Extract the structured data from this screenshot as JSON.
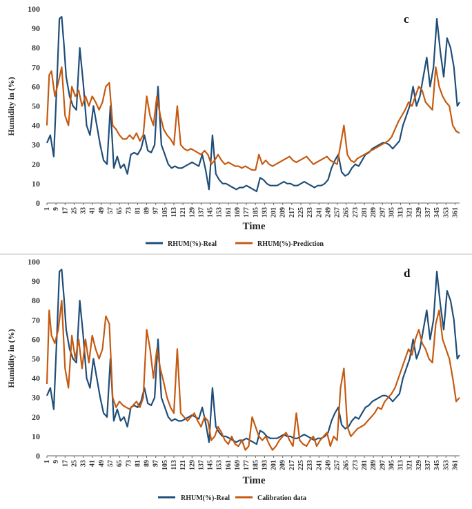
{
  "colors": {
    "real": "#1f4e79",
    "predicted": "#c55a11",
    "axis": "#666666",
    "divider": "#bfbfbf"
  },
  "chart_data": [
    {
      "type": "line",
      "panel_label": "c",
      "xlabel": "Time",
      "ylabel": "Humidity in (%)",
      "ylim": [
        0,
        100
      ],
      "yticks": [
        0,
        10,
        20,
        30,
        40,
        50,
        60,
        70,
        80,
        90,
        100
      ],
      "xlim": [
        1,
        365
      ],
      "xticks": [
        1,
        9,
        17,
        25,
        33,
        41,
        49,
        57,
        65,
        73,
        81,
        89,
        97,
        105,
        113,
        121,
        129,
        137,
        145,
        153,
        161,
        169,
        177,
        185,
        193,
        201,
        209,
        217,
        225,
        233,
        241,
        249,
        257,
        265,
        273,
        281,
        289,
        297,
        305,
        313,
        321,
        329,
        337,
        345,
        353,
        361
      ],
      "legend_position": "bottom",
      "series": [
        {
          "name": "RHUM(%)-Real",
          "color": "#1f4e79",
          "x": [
            1,
            4,
            7,
            10,
            12,
            14,
            16,
            18,
            21,
            24,
            27,
            30,
            33,
            36,
            39,
            42,
            45,
            48,
            51,
            54,
            57,
            60,
            63,
            66,
            69,
            72,
            75,
            78,
            81,
            84,
            87,
            90,
            93,
            96,
            99,
            102,
            105,
            108,
            111,
            114,
            117,
            120,
            123,
            126,
            129,
            132,
            135,
            138,
            141,
            144,
            147,
            150,
            153,
            156,
            159,
            162,
            165,
            168,
            171,
            174,
            177,
            180,
            183,
            186,
            189,
            192,
            195,
            198,
            201,
            204,
            207,
            210,
            213,
            216,
            219,
            222,
            225,
            228,
            231,
            234,
            237,
            240,
            243,
            246,
            249,
            252,
            255,
            258,
            261,
            264,
            267,
            270,
            273,
            276,
            279,
            282,
            285,
            288,
            291,
            294,
            297,
            300,
            303,
            306,
            309,
            312,
            315,
            318,
            321,
            324,
            327,
            330,
            333,
            336,
            339,
            342,
            345,
            348,
            351,
            354,
            357,
            360,
            363,
            365
          ],
          "values": [
            31,
            35,
            24,
            65,
            95,
            96,
            82,
            65,
            55,
            50,
            48,
            80,
            62,
            40,
            35,
            50,
            40,
            30,
            22,
            20,
            50,
            18,
            24,
            18,
            20,
            15,
            25,
            26,
            25,
            28,
            35,
            27,
            26,
            30,
            60,
            30,
            25,
            20,
            18,
            19,
            18,
            18,
            19,
            20,
            21,
            20,
            19,
            25,
            17,
            7,
            35,
            15,
            12,
            10,
            10,
            9,
            8,
            7,
            8,
            8,
            9,
            8,
            7,
            6,
            13,
            12,
            10,
            9,
            9,
            9,
            10,
            11,
            10,
            10,
            9,
            9,
            10,
            11,
            10,
            9,
            8,
            9,
            9,
            10,
            12,
            18,
            22,
            25,
            16,
            14,
            15,
            18,
            20,
            19,
            22,
            25,
            26,
            28,
            29,
            30,
            31,
            31,
            30,
            28,
            30,
            32,
            40,
            45,
            50,
            60,
            50,
            55,
            65,
            75,
            60,
            70,
            95,
            78,
            65,
            85,
            80,
            70,
            50,
            52
          ]
        },
        {
          "name": "RHUM(%)-Prediction",
          "color": "#c55a11",
          "x": [
            1,
            3,
            5,
            8,
            11,
            14,
            17,
            20,
            23,
            26,
            29,
            32,
            35,
            38,
            41,
            44,
            47,
            50,
            53,
            56,
            59,
            62,
            65,
            68,
            71,
            74,
            77,
            80,
            83,
            86,
            89,
            92,
            95,
            98,
            101,
            104,
            107,
            110,
            113,
            116,
            119,
            122,
            125,
            128,
            131,
            134,
            137,
            140,
            143,
            146,
            149,
            152,
            155,
            158,
            161,
            164,
            167,
            170,
            173,
            176,
            179,
            182,
            185,
            188,
            191,
            194,
            197,
            200,
            203,
            206,
            209,
            212,
            215,
            218,
            221,
            224,
            227,
            230,
            233,
            236,
            239,
            242,
            245,
            248,
            251,
            254,
            257,
            260,
            263,
            266,
            269,
            272,
            275,
            278,
            281,
            284,
            287,
            290,
            293,
            296,
            299,
            302,
            305,
            308,
            311,
            314,
            317,
            320,
            323,
            326,
            329,
            332,
            335,
            338,
            341,
            344,
            347,
            350,
            353,
            356,
            359,
            362,
            365
          ],
          "values": [
            40,
            66,
            68,
            55,
            62,
            70,
            45,
            40,
            60,
            55,
            58,
            50,
            55,
            50,
            55,
            52,
            48,
            52,
            60,
            62,
            40,
            38,
            35,
            33,
            33,
            35,
            33,
            36,
            32,
            35,
            55,
            45,
            40,
            55,
            45,
            38,
            35,
            33,
            30,
            50,
            30,
            28,
            27,
            28,
            27,
            26,
            25,
            27,
            25,
            20,
            22,
            25,
            22,
            20,
            21,
            20,
            19,
            19,
            18,
            19,
            18,
            17,
            17,
            25,
            20,
            22,
            20,
            19,
            20,
            21,
            22,
            23,
            24,
            22,
            21,
            22,
            23,
            24,
            22,
            20,
            21,
            22,
            23,
            24,
            22,
            21,
            20,
            30,
            40,
            25,
            22,
            21,
            23,
            24,
            25,
            26,
            27,
            28,
            29,
            30,
            31,
            32,
            34,
            38,
            42,
            45,
            48,
            52,
            50,
            55,
            60,
            58,
            52,
            50,
            48,
            70,
            60,
            55,
            52,
            50,
            40,
            37,
            36
          ]
        }
      ]
    },
    {
      "type": "line",
      "panel_label": "d",
      "xlabel": "Time",
      "ylabel": "Humidity in (%)",
      "ylim": [
        0,
        100
      ],
      "yticks": [
        0,
        10,
        20,
        30,
        40,
        50,
        60,
        70,
        80,
        90,
        100
      ],
      "xlim": [
        1,
        365
      ],
      "xticks": [
        1,
        9,
        17,
        25,
        33,
        41,
        49,
        57,
        65,
        73,
        81,
        89,
        97,
        105,
        113,
        121,
        129,
        137,
        145,
        153,
        161,
        169,
        177,
        185,
        193,
        201,
        209,
        217,
        225,
        233,
        241,
        249,
        257,
        265,
        273,
        281,
        289,
        297,
        305,
        313,
        321,
        329,
        337,
        345,
        353,
        361
      ],
      "legend_position": "bottom",
      "series": [
        {
          "name": "RHUM(%)-Real",
          "color": "#1f4e79",
          "x": [
            1,
            4,
            7,
            10,
            12,
            14,
            16,
            18,
            21,
            24,
            27,
            30,
            33,
            36,
            39,
            42,
            45,
            48,
            51,
            54,
            57,
            60,
            63,
            66,
            69,
            72,
            75,
            78,
            81,
            84,
            87,
            90,
            93,
            96,
            99,
            102,
            105,
            108,
            111,
            114,
            117,
            120,
            123,
            126,
            129,
            132,
            135,
            138,
            141,
            144,
            147,
            150,
            153,
            156,
            159,
            162,
            165,
            168,
            171,
            174,
            177,
            180,
            183,
            186,
            189,
            192,
            195,
            198,
            201,
            204,
            207,
            210,
            213,
            216,
            219,
            222,
            225,
            228,
            231,
            234,
            237,
            240,
            243,
            246,
            249,
            252,
            255,
            258,
            261,
            264,
            267,
            270,
            273,
            276,
            279,
            282,
            285,
            288,
            291,
            294,
            297,
            300,
            303,
            306,
            309,
            312,
            315,
            318,
            321,
            324,
            327,
            330,
            333,
            336,
            339,
            342,
            345,
            348,
            351,
            354,
            357,
            360,
            363,
            365
          ],
          "values": [
            31,
            35,
            24,
            65,
            95,
            96,
            82,
            65,
            55,
            50,
            48,
            80,
            62,
            40,
            35,
            50,
            40,
            30,
            22,
            20,
            50,
            18,
            24,
            18,
            20,
            15,
            25,
            26,
            25,
            28,
            35,
            27,
            26,
            30,
            60,
            30,
            25,
            20,
            18,
            19,
            18,
            18,
            19,
            20,
            21,
            20,
            19,
            25,
            17,
            7,
            35,
            15,
            12,
            10,
            10,
            9,
            8,
            7,
            8,
            8,
            9,
            8,
            7,
            6,
            13,
            12,
            10,
            9,
            9,
            9,
            10,
            11,
            10,
            10,
            9,
            9,
            10,
            11,
            10,
            9,
            8,
            9,
            9,
            10,
            12,
            18,
            22,
            25,
            16,
            14,
            15,
            18,
            20,
            19,
            22,
            25,
            26,
            28,
            29,
            30,
            31,
            31,
            30,
            28,
            30,
            32,
            40,
            45,
            50,
            60,
            50,
            55,
            65,
            75,
            60,
            70,
            95,
            78,
            65,
            85,
            80,
            70,
            50,
            52
          ]
        },
        {
          "name": "Calibration data",
          "color": "#c55a11",
          "x": [
            1,
            3,
            5,
            8,
            11,
            14,
            17,
            20,
            23,
            26,
            29,
            32,
            35,
            38,
            41,
            44,
            47,
            50,
            53,
            56,
            59,
            62,
            65,
            68,
            71,
            74,
            77,
            80,
            83,
            86,
            89,
            92,
            95,
            98,
            101,
            104,
            107,
            110,
            113,
            116,
            119,
            122,
            125,
            128,
            131,
            134,
            137,
            140,
            143,
            146,
            149,
            152,
            155,
            158,
            161,
            164,
            167,
            170,
            173,
            176,
            179,
            182,
            185,
            188,
            191,
            194,
            197,
            200,
            203,
            206,
            209,
            212,
            215,
            218,
            221,
            224,
            227,
            230,
            233,
            236,
            239,
            242,
            245,
            248,
            251,
            254,
            257,
            260,
            263,
            266,
            269,
            272,
            275,
            278,
            281,
            284,
            287,
            290,
            293,
            296,
            299,
            302,
            305,
            308,
            311,
            314,
            317,
            320,
            323,
            326,
            329,
            332,
            335,
            338,
            341,
            344,
            347,
            350,
            353,
            356,
            359,
            362,
            365
          ],
          "values": [
            37,
            75,
            62,
            58,
            65,
            80,
            45,
            35,
            62,
            50,
            60,
            45,
            60,
            48,
            62,
            55,
            50,
            55,
            72,
            68,
            30,
            25,
            28,
            26,
            25,
            24,
            26,
            28,
            25,
            30,
            65,
            55,
            40,
            55,
            45,
            38,
            30,
            25,
            22,
            55,
            22,
            20,
            18,
            20,
            22,
            18,
            15,
            20,
            18,
            8,
            10,
            15,
            12,
            8,
            6,
            10,
            6,
            5,
            8,
            3,
            5,
            20,
            15,
            10,
            8,
            10,
            6,
            3,
            5,
            8,
            10,
            12,
            8,
            5,
            22,
            8,
            6,
            5,
            8,
            10,
            5,
            8,
            10,
            12,
            5,
            10,
            8,
            35,
            45,
            15,
            10,
            12,
            14,
            15,
            16,
            18,
            20,
            22,
            25,
            24,
            28,
            30,
            32,
            35,
            40,
            45,
            50,
            55,
            52,
            60,
            65,
            58,
            55,
            50,
            48,
            68,
            75,
            60,
            55,
            50,
            40,
            28,
            30
          ]
        }
      ]
    }
  ]
}
